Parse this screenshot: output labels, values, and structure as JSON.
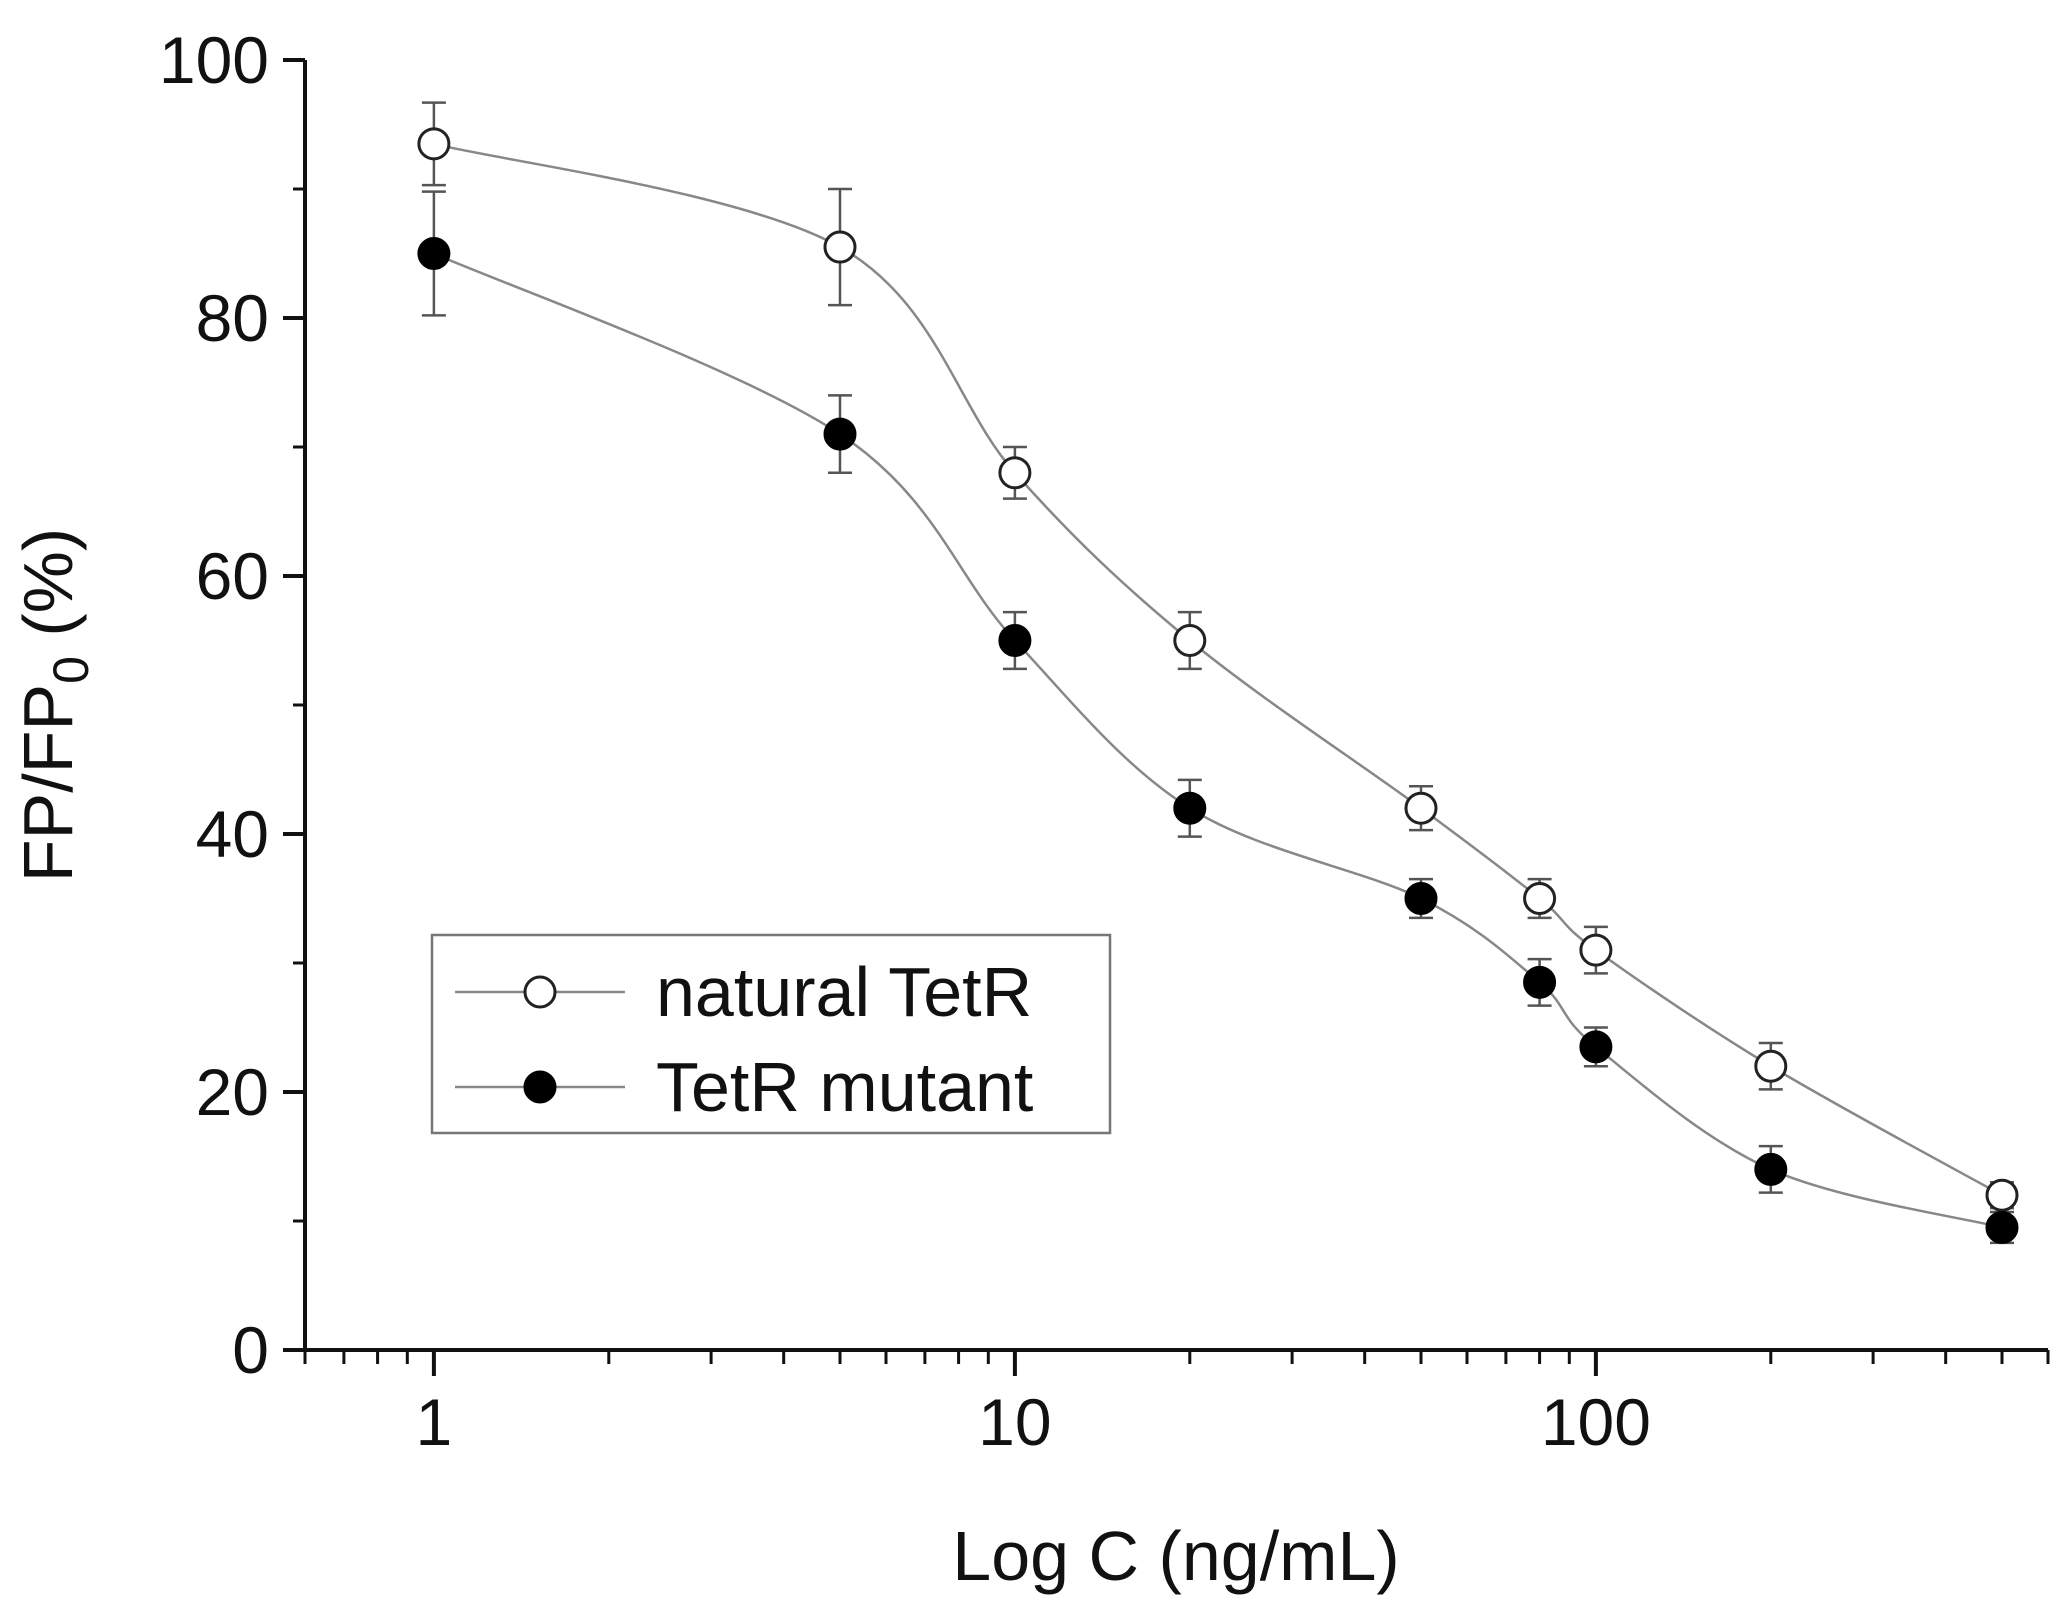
{
  "chart_data": {
    "type": "scatter",
    "title": "",
    "xlabel": "Log C (ng/mL)",
    "ylabel": "FP/FP",
    "ylabel_subscript": "0",
    "ylabel_suffix": " (%)",
    "xscale": "log",
    "xlim": [
      0.6,
      600
    ],
    "ylim": [
      0,
      100
    ],
    "x_ticks": [
      {
        "value": 1,
        "label": "1"
      },
      {
        "value": 10,
        "label": "10"
      },
      {
        "value": 100,
        "label": "100"
      }
    ],
    "y_ticks": [
      {
        "value": 0,
        "label": "0"
      },
      {
        "value": 20,
        "label": "20"
      },
      {
        "value": 40,
        "label": "40"
      },
      {
        "value": 60,
        "label": "60"
      },
      {
        "value": 80,
        "label": "80"
      },
      {
        "value": 100,
        "label": "100"
      }
    ],
    "grid": false,
    "legend_position": "lower-left",
    "series": [
      {
        "name": "natural TetR",
        "marker": "open-circle",
        "x": [
          1,
          5,
          10,
          20,
          50,
          80,
          100,
          200,
          500
        ],
        "y": [
          93.5,
          85.5,
          68,
          55,
          42,
          35,
          31,
          22,
          12
        ],
        "err": [
          3.2,
          4.5,
          2.0,
          2.2,
          1.7,
          1.5,
          1.8,
          1.8,
          1.0
        ]
      },
      {
        "name": "TetR mutant",
        "marker": "filled-circle",
        "x": [
          1,
          5,
          10,
          20,
          50,
          80,
          100,
          200,
          500
        ],
        "y": [
          85,
          71,
          55,
          42,
          35,
          28.5,
          23.5,
          14,
          9.5
        ],
        "err": [
          4.8,
          3.0,
          2.2,
          2.2,
          1.5,
          1.8,
          1.5,
          1.8,
          1.2
        ]
      }
    ],
    "colors": {
      "axis": "#111111",
      "line": "#888888",
      "marker_stroke": "#222222",
      "open_fill": "#ffffff",
      "filled_fill": "#000000",
      "error_bar": "#555555",
      "legend_border": "#777777"
    }
  }
}
